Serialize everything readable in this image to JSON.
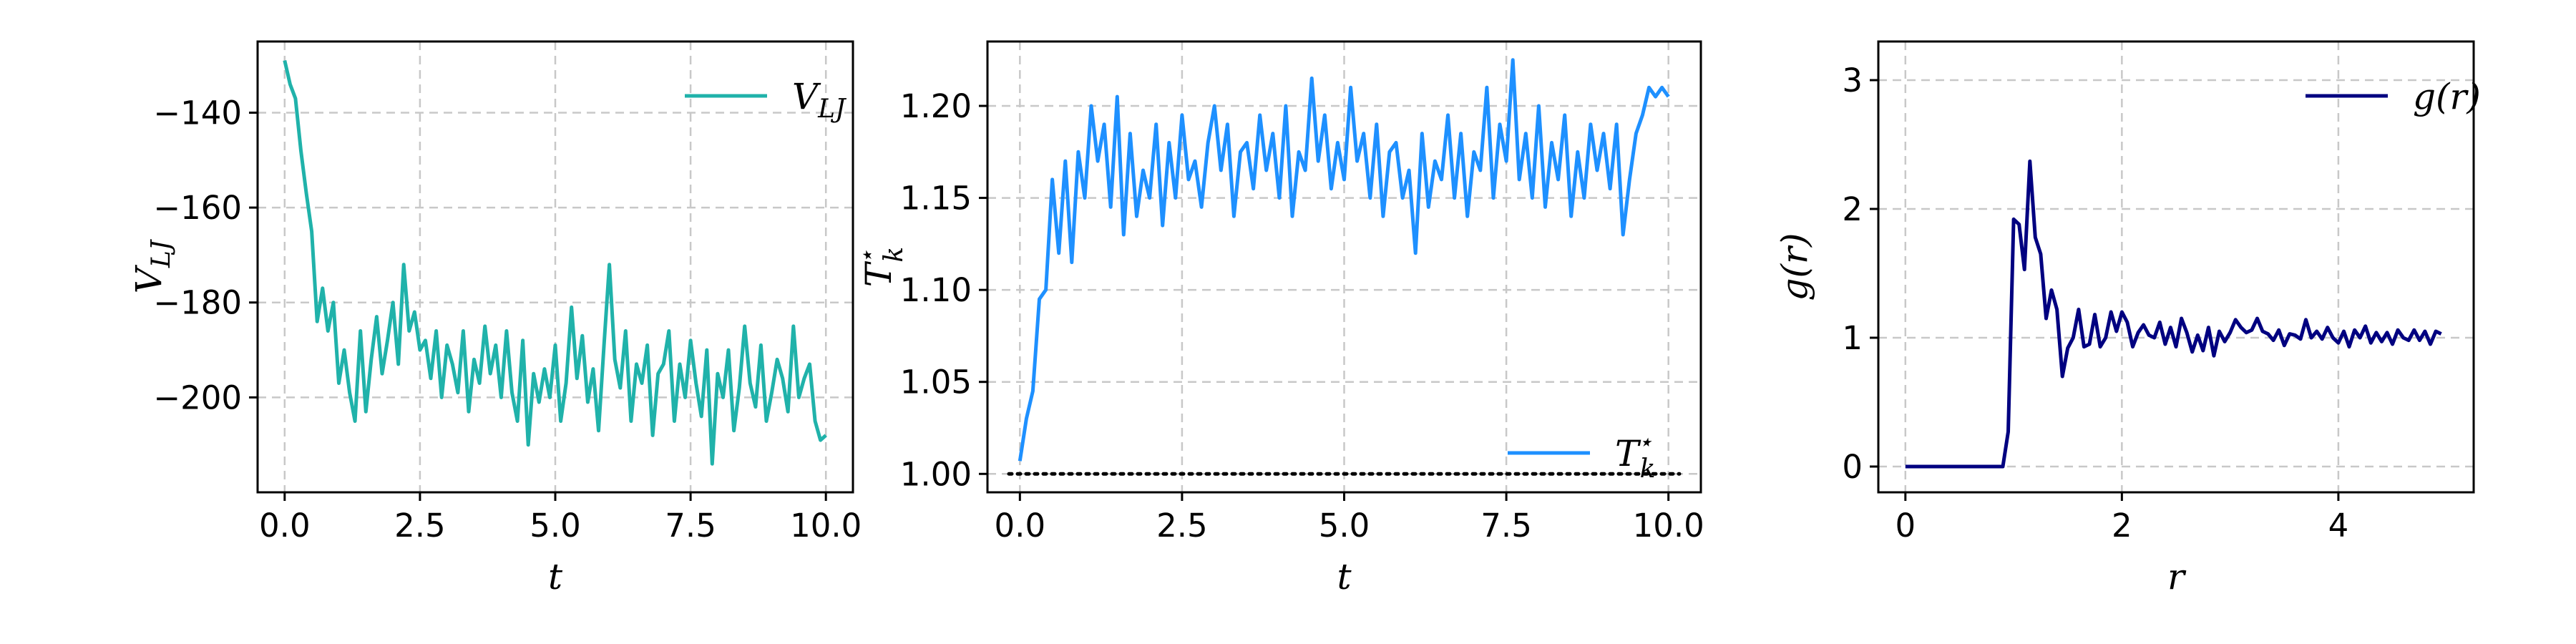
{
  "chart_data": [
    {
      "type": "line",
      "xlabel": "t",
      "ylabel": "V_LJ",
      "xlim": [
        -0.5,
        10.5
      ],
      "ylim": [
        -220,
        -125
      ],
      "xticks": [
        "0.0",
        "2.5",
        "5.0",
        "7.5",
        "10.0"
      ],
      "xtick_values": [
        0,
        2.5,
        5,
        7.5,
        10
      ],
      "yticks": [
        "−140",
        "−160",
        "−180",
        "−200"
      ],
      "ytick_values": [
        -140,
        -160,
        -180,
        -200
      ],
      "grid": true,
      "legend_position": "top-right",
      "series": [
        {
          "name": "V_LJ",
          "color": "#20b2aa",
          "x": [
            0,
            0.1,
            0.2,
            0.3,
            0.4,
            0.5,
            0.6,
            0.7,
            0.8,
            0.9,
            1.0,
            1.1,
            1.2,
            1.3,
            1.4,
            1.5,
            1.6,
            1.7,
            1.8,
            1.9,
            2.0,
            2.1,
            2.2,
            2.3,
            2.4,
            2.5,
            2.6,
            2.7,
            2.8,
            2.9,
            3.0,
            3.1,
            3.2,
            3.3,
            3.4,
            3.5,
            3.6,
            3.7,
            3.8,
            3.9,
            4.0,
            4.1,
            4.2,
            4.3,
            4.4,
            4.5,
            4.6,
            4.7,
            4.8,
            4.9,
            5.0,
            5.1,
            5.2,
            5.3,
            5.4,
            5.5,
            5.6,
            5.7,
            5.8,
            5.9,
            6.0,
            6.1,
            6.2,
            6.3,
            6.4,
            6.5,
            6.6,
            6.7,
            6.8,
            6.9,
            7.0,
            7.1,
            7.2,
            7.3,
            7.4,
            7.5,
            7.6,
            7.7,
            7.8,
            7.9,
            8.0,
            8.1,
            8.2,
            8.3,
            8.4,
            8.5,
            8.6,
            8.7,
            8.8,
            8.9,
            9.0,
            9.1,
            9.2,
            9.3,
            9.4,
            9.5,
            9.6,
            9.7,
            9.8,
            9.9,
            10.0
          ],
          "y": [
            -129,
            -134,
            -137,
            -148,
            -157,
            -165,
            -184,
            -177,
            -186,
            -180,
            -197,
            -190,
            -199,
            -205,
            -186,
            -203,
            -192,
            -183,
            -195,
            -188,
            -180,
            -193,
            -172,
            -186,
            -182,
            -190,
            -188,
            -196,
            -186,
            -200,
            -189,
            -193,
            -199,
            -186,
            -203,
            -192,
            -197,
            -185,
            -195,
            -189,
            -200,
            -186,
            -199,
            -205,
            -188,
            -210,
            -195,
            -201,
            -194,
            -200,
            -189,
            -205,
            -197,
            -181,
            -196,
            -187,
            -201,
            -194,
            -207,
            -189,
            -172,
            -192,
            -198,
            -186,
            -205,
            -193,
            -197,
            -189,
            -208,
            -195,
            -193,
            -186,
            -205,
            -193,
            -200,
            -188,
            -197,
            -204,
            -190,
            -214,
            -195,
            -200,
            -190,
            -207,
            -198,
            -185,
            -197,
            -202,
            -189,
            -205,
            -199,
            -192,
            -196,
            -203,
            -185,
            -200,
            -196,
            -193,
            -205,
            -209,
            -208
          ]
        }
      ]
    },
    {
      "type": "line",
      "xlabel": "t",
      "ylabel": "T_k*",
      "xlim": [
        -0.5,
        10.5
      ],
      "ylim": [
        0.99,
        1.235
      ],
      "xticks": [
        "0.0",
        "2.5",
        "5.0",
        "7.5",
        "10.0"
      ],
      "xtick_values": [
        0,
        2.5,
        5,
        7.5,
        10
      ],
      "yticks": [
        "1.00",
        "1.05",
        "1.10",
        "1.15",
        "1.20"
      ],
      "ytick_values": [
        1.0,
        1.05,
        1.1,
        1.15,
        1.2
      ],
      "grid": true,
      "legend_position": "lower-right",
      "reference_line": {
        "y": 1.0,
        "x_range": [
          -0.5,
          10.5
        ],
        "style": "dotted",
        "color": "#000000"
      },
      "series": [
        {
          "name": "T_k*",
          "color": "#1e90ff",
          "x": [
            0,
            0.1,
            0.2,
            0.3,
            0.4,
            0.5,
            0.6,
            0.7,
            0.8,
            0.9,
            1.0,
            1.1,
            1.2,
            1.3,
            1.4,
            1.5,
            1.6,
            1.7,
            1.8,
            1.9,
            2.0,
            2.1,
            2.2,
            2.3,
            2.4,
            2.5,
            2.6,
            2.7,
            2.8,
            2.9,
            3.0,
            3.1,
            3.2,
            3.3,
            3.4,
            3.5,
            3.6,
            3.7,
            3.8,
            3.9,
            4.0,
            4.1,
            4.2,
            4.3,
            4.4,
            4.5,
            4.6,
            4.7,
            4.8,
            4.9,
            5.0,
            5.1,
            5.2,
            5.3,
            5.4,
            5.5,
            5.6,
            5.7,
            5.8,
            5.9,
            6.0,
            6.1,
            6.2,
            6.3,
            6.4,
            6.5,
            6.6,
            6.7,
            6.8,
            6.9,
            7.0,
            7.1,
            7.2,
            7.3,
            7.4,
            7.5,
            7.6,
            7.7,
            7.8,
            7.9,
            8.0,
            8.1,
            8.2,
            8.3,
            8.4,
            8.5,
            8.6,
            8.7,
            8.8,
            8.9,
            9.0,
            9.1,
            9.2,
            9.3,
            9.4,
            9.5,
            9.6,
            9.7,
            9.8,
            9.9,
            10.0
          ],
          "y": [
            1.007,
            1.03,
            1.045,
            1.095,
            1.1,
            1.16,
            1.12,
            1.17,
            1.115,
            1.175,
            1.15,
            1.2,
            1.17,
            1.19,
            1.145,
            1.205,
            1.13,
            1.185,
            1.14,
            1.165,
            1.15,
            1.19,
            1.135,
            1.18,
            1.15,
            1.195,
            1.16,
            1.17,
            1.145,
            1.18,
            1.2,
            1.165,
            1.19,
            1.14,
            1.175,
            1.18,
            1.155,
            1.195,
            1.165,
            1.185,
            1.15,
            1.2,
            1.14,
            1.175,
            1.165,
            1.215,
            1.17,
            1.195,
            1.155,
            1.18,
            1.16,
            1.21,
            1.17,
            1.185,
            1.15,
            1.19,
            1.14,
            1.175,
            1.18,
            1.15,
            1.165,
            1.12,
            1.185,
            1.145,
            1.17,
            1.16,
            1.195,
            1.15,
            1.185,
            1.14,
            1.175,
            1.165,
            1.21,
            1.15,
            1.19,
            1.17,
            1.225,
            1.16,
            1.185,
            1.15,
            1.2,
            1.145,
            1.18,
            1.16,
            1.195,
            1.14,
            1.175,
            1.15,
            1.19,
            1.165,
            1.185,
            1.155,
            1.19,
            1.13,
            1.16,
            1.185,
            1.195,
            1.21,
            1.205,
            1.21,
            1.205
          ]
        }
      ]
    },
    {
      "type": "line",
      "xlabel": "r",
      "ylabel": "g(r)",
      "xlim": [
        -0.25,
        5.25
      ],
      "ylim": [
        -0.2,
        3.3
      ],
      "xticks": [
        "0",
        "2",
        "4"
      ],
      "xtick_values": [
        0,
        2,
        4
      ],
      "yticks": [
        "0",
        "1",
        "2",
        "3"
      ],
      "ytick_values": [
        0,
        1,
        2,
        3
      ],
      "grid": true,
      "legend_position": "top-right",
      "series": [
        {
          "name": "g(r)",
          "color": "#000080",
          "x": [
            0,
            0.5,
            0.9,
            0.95,
            1.0,
            1.05,
            1.1,
            1.15,
            1.2,
            1.25,
            1.3,
            1.35,
            1.4,
            1.45,
            1.5,
            1.55,
            1.6,
            1.65,
            1.7,
            1.75,
            1.8,
            1.85,
            1.9,
            1.95,
            2.0,
            2.05,
            2.1,
            2.15,
            2.2,
            2.25,
            2.3,
            2.35,
            2.4,
            2.45,
            2.5,
            2.55,
            2.6,
            2.65,
            2.7,
            2.75,
            2.8,
            2.85,
            2.9,
            2.95,
            3.0,
            3.05,
            3.1,
            3.15,
            3.2,
            3.25,
            3.3,
            3.35,
            3.4,
            3.45,
            3.5,
            3.55,
            3.6,
            3.65,
            3.7,
            3.75,
            3.8,
            3.85,
            3.9,
            3.95,
            4.0,
            4.05,
            4.1,
            4.15,
            4.2,
            4.25,
            4.3,
            4.35,
            4.4,
            4.45,
            4.5,
            4.55,
            4.6,
            4.65,
            4.7,
            4.75,
            4.8,
            4.85,
            4.9,
            4.95
          ],
          "y": [
            0,
            0,
            0,
            0.27,
            1.92,
            1.88,
            1.53,
            2.37,
            1.78,
            1.65,
            1.15,
            1.37,
            1.22,
            0.7,
            0.92,
            1.0,
            1.22,
            0.93,
            0.95,
            1.18,
            0.93,
            1.0,
            1.2,
            1.05,
            1.2,
            1.12,
            0.93,
            1.04,
            1.1,
            1.02,
            1.0,
            1.12,
            0.95,
            1.08,
            0.93,
            1.15,
            1.04,
            0.89,
            1.02,
            0.9,
            1.08,
            0.86,
            1.05,
            0.97,
            1.04,
            1.14,
            1.08,
            1.04,
            1.06,
            1.15,
            1.05,
            1.03,
            0.98,
            1.06,
            0.94,
            1.03,
            1.02,
            0.99,
            1.14,
            1.0,
            1.05,
            0.99,
            1.08,
            1.0,
            0.96,
            1.05,
            0.93,
            1.06,
            1.0,
            1.09,
            0.96,
            1.04,
            0.97,
            1.04,
            0.95,
            1.06,
            1.0,
            0.98,
            1.06,
            0.98,
            1.05,
            0.95,
            1.05,
            1.03
          ]
        }
      ]
    }
  ]
}
